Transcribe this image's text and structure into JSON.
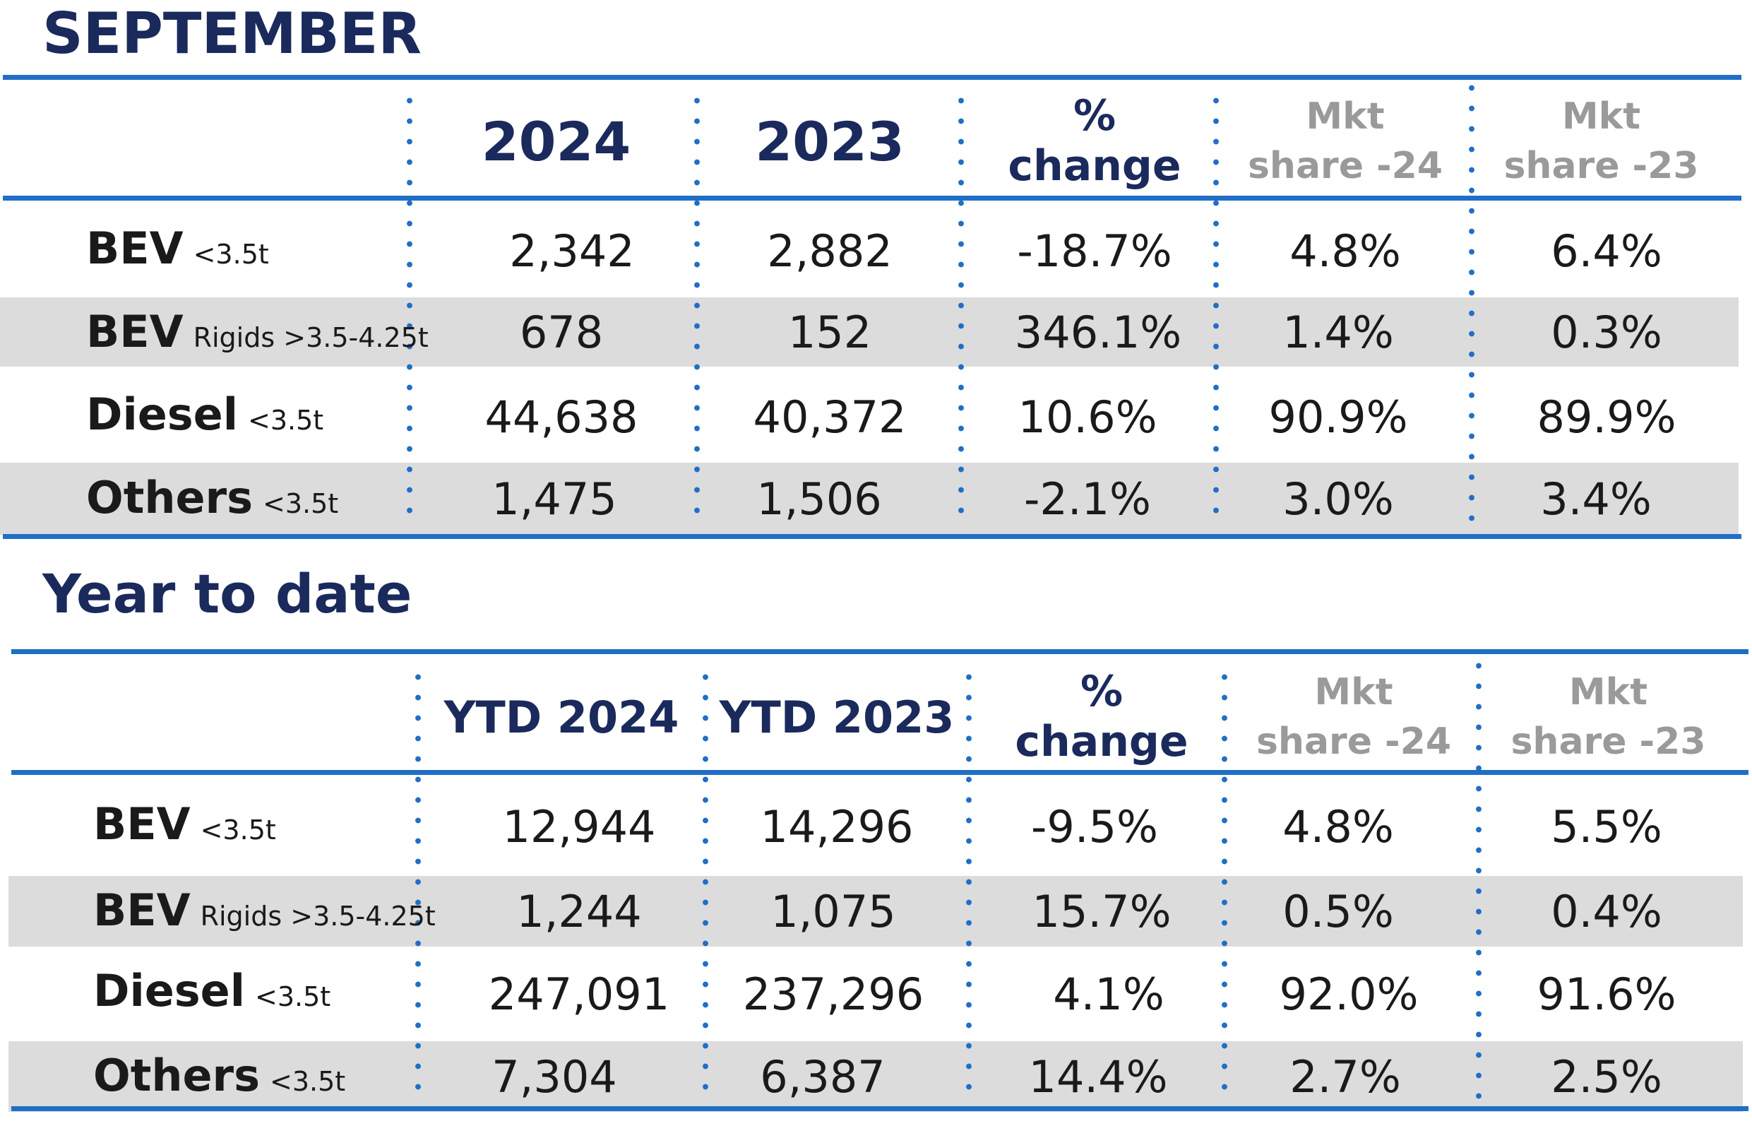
{
  "september": {
    "title": "SEPTEMBER",
    "headers": {
      "y1": "2024",
      "y2": "2023",
      "pct_line1": "%",
      "pct_line2": "change",
      "m24_line1": "Mkt",
      "m24_line2": "share -24",
      "m23_line1": "Mkt",
      "m23_line2": "share -23"
    },
    "rows": [
      {
        "label": "BEV",
        "sub": "<3.5t",
        "v2024": "2,342",
        "v2023": "2,882",
        "pct": "-18.7%",
        "m24": "4.8%",
        "m23": "6.4%"
      },
      {
        "label": "BEV",
        "sub": "Rigids >3.5-4.25t",
        "v2024": "678",
        "v2023": "152",
        "pct": "346.1%",
        "m24": "1.4%",
        "m23": "0.3%"
      },
      {
        "label": "Diesel",
        "sub": "<3.5t",
        "v2024": "44,638",
        "v2023": "40,372",
        "pct": "10.6%",
        "m24": "90.9%",
        "m23": "89.9%"
      },
      {
        "label": "Others",
        "sub": "<3.5t",
        "v2024": "1,475",
        "v2023": "1,506",
        "pct": "-2.1%",
        "m24": "3.0%",
        "m23": "3.4%"
      }
    ]
  },
  "ytd": {
    "title": "Year to date",
    "headers": {
      "y1": "YTD 2024",
      "y2": "YTD 2023",
      "pct_line1": "%",
      "pct_line2": "change",
      "m24_line1": "Mkt",
      "m24_line2": "share -24",
      "m23_line1": "Mkt",
      "m23_line2": "share -23"
    },
    "rows": [
      {
        "label": "BEV",
        "sub": "<3.5t",
        "v2024": "12,944",
        "v2023": "14,296",
        "pct": "-9.5%",
        "m24": "4.8%",
        "m23": "5.5%"
      },
      {
        "label": "BEV",
        "sub": "Rigids >3.5-4.25t",
        "v2024": "1,244",
        "v2023": "1,075",
        "pct": "15.7%",
        "m24": "0.5%",
        "m23": "0.4%"
      },
      {
        "label": "Diesel",
        "sub": "<3.5t",
        "v2024": "247,091",
        "v2023": "237,296",
        "pct": "4.1%",
        "m24": "92.0%",
        "m23": "91.6%"
      },
      {
        "label": "Others",
        "sub": "<3.5t",
        "v2024": "7,304",
        "v2023": "6,387",
        "pct": "14.4%",
        "m24": "2.7%",
        "m23": "2.5%"
      }
    ]
  },
  "colors": {
    "title": "#1b2a5c",
    "rule": "#1f6fc6",
    "band": "#dcdcdc",
    "muted_header": "#9a9a9a"
  }
}
